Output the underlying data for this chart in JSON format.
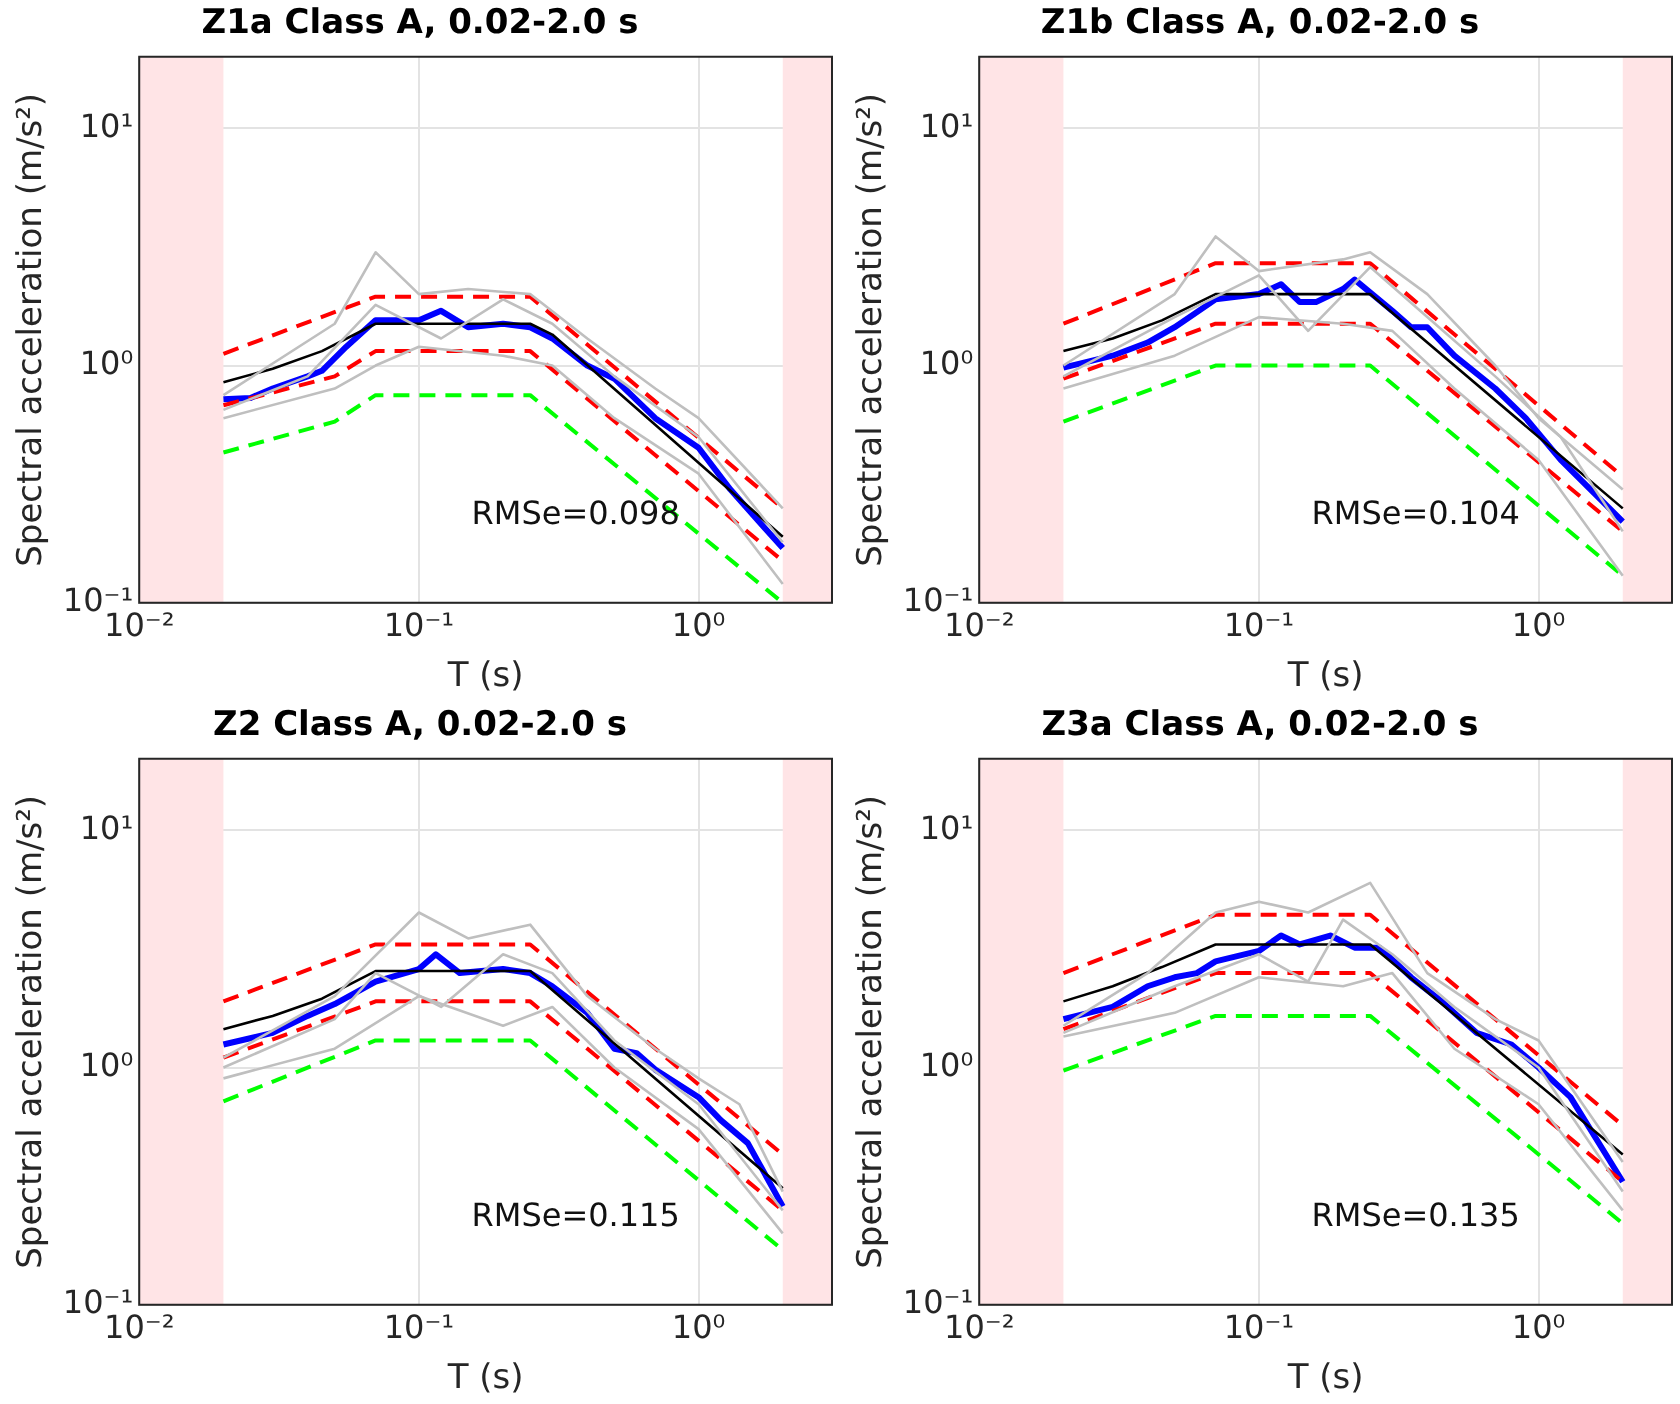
{
  "chart_data": [
    {
      "type": "line",
      "title": "Z1a Class A, 0.02-2.0 s",
      "xlabel": "T (s)",
      "ylabel": "Spectral acceleration (m/s²)",
      "log": "xy",
      "grid": true,
      "marker": "none",
      "xlim": [
        0.01,
        3
      ],
      "ylim": [
        0.1,
        20
      ],
      "xticks": [
        {
          "value": 0.01,
          "label": "10⁻²"
        },
        {
          "value": 0.1,
          "label": "10⁻¹"
        },
        {
          "value": 1,
          "label": "10⁰"
        }
      ],
      "yticks": [
        {
          "value": 0.1,
          "label": "10⁻¹"
        },
        {
          "value": 1,
          "label": "10⁰"
        },
        {
          "value": 10,
          "label": "10¹"
        }
      ],
      "bands": [
        {
          "axis": "x",
          "from": 0.01,
          "to": 0.02,
          "color": "#ffe4e6"
        },
        {
          "axis": "x",
          "from": 2.0,
          "to": 3,
          "color": "#ffe4e6"
        }
      ],
      "annotations": [
        "RMSe=0.098"
      ],
      "series": [
        {
          "color": "#bfbfbf",
          "x": [
            0.02,
            0.05,
            0.07,
            0.1,
            0.15,
            0.25,
            0.4,
            0.7,
            1.0,
            2.0
          ],
          "values": [
            0.75,
            1.5,
            3.0,
            2.0,
            2.1,
            2.0,
            1.3,
            0.8,
            0.6,
            0.25
          ]
        },
        {
          "color": "#bfbfbf",
          "x": [
            0.02,
            0.05,
            0.07,
            0.1,
            0.2,
            0.3,
            0.5,
            1.0,
            2.0
          ],
          "values": [
            0.6,
            0.8,
            1.0,
            1.2,
            1.1,
            1.0,
            0.6,
            0.35,
            0.12
          ]
        },
        {
          "color": "#bfbfbf",
          "x": [
            0.02,
            0.04,
            0.07,
            0.12,
            0.2,
            0.3,
            0.5,
            1.0,
            2.0
          ],
          "values": [
            0.65,
            0.9,
            1.8,
            1.3,
            1.9,
            1.5,
            0.9,
            0.5,
            0.18
          ]
        },
        {
          "color": "#00ff00",
          "line_style": "dashed",
          "x": [
            0.02,
            0.05,
            0.07,
            0.25,
            2.0
          ],
          "values": [
            0.43,
            0.58,
            0.75,
            0.75,
            0.1
          ]
        },
        {
          "color": "#ff0000",
          "line_style": "dashed",
          "x": [
            0.02,
            0.07,
            0.25,
            2.0
          ],
          "values": [
            1.12,
            1.95,
            1.95,
            0.25
          ]
        },
        {
          "color": "#ff0000",
          "line_style": "dashed",
          "x": [
            0.02,
            0.05,
            0.07,
            0.25,
            2.0
          ],
          "values": [
            0.68,
            0.9,
            1.15,
            1.15,
            0.15
          ]
        },
        {
          "color": "#000000",
          "x": [
            0.02,
            0.03,
            0.045,
            0.07,
            0.25,
            0.3,
            2.0
          ],
          "values": [
            0.85,
            0.97,
            1.15,
            1.5,
            1.5,
            1.35,
            0.19
          ]
        },
        {
          "color": "#0000ff",
          "x": [
            0.02,
            0.025,
            0.03,
            0.04,
            0.045,
            0.055,
            0.07,
            0.1,
            0.12,
            0.15,
            0.2,
            0.25,
            0.3,
            0.4,
            0.5,
            0.7,
            1.0,
            1.3,
            2.0
          ],
          "values": [
            0.72,
            0.73,
            0.8,
            0.9,
            0.95,
            1.2,
            1.55,
            1.55,
            1.7,
            1.45,
            1.5,
            1.45,
            1.3,
            1.0,
            0.88,
            0.6,
            0.45,
            0.3,
            0.17
          ]
        }
      ]
    },
    {
      "type": "line",
      "title": "Z1b Class A, 0.02-2.0 s",
      "xlabel": "T (s)",
      "ylabel": "Spectral acceleration (m/s²)",
      "log": "xy",
      "grid": true,
      "marker": "none",
      "xlim": [
        0.01,
        3
      ],
      "ylim": [
        0.1,
        20
      ],
      "xticks": [
        {
          "value": 0.01,
          "label": "10⁻²"
        },
        {
          "value": 0.1,
          "label": "10⁻¹"
        },
        {
          "value": 1,
          "label": "10⁰"
        }
      ],
      "yticks": [
        {
          "value": 0.1,
          "label": "10⁻¹"
        },
        {
          "value": 1,
          "label": "10⁰"
        },
        {
          "value": 10,
          "label": "10¹"
        }
      ],
      "bands": [
        {
          "axis": "x",
          "from": 0.01,
          "to": 0.02,
          "color": "#ffe4e6"
        },
        {
          "axis": "x",
          "from": 2.0,
          "to": 3,
          "color": "#ffe4e6"
        }
      ],
      "annotations": [
        "RMSe=0.104"
      ],
      "series": [
        {
          "color": "#bfbfbf",
          "x": [
            0.02,
            0.05,
            0.07,
            0.1,
            0.2,
            0.25,
            0.4,
            0.7,
            1.0,
            2.0
          ],
          "values": [
            1.0,
            2.0,
            3.5,
            2.5,
            2.8,
            3.0,
            2.0,
            1.0,
            0.6,
            0.3
          ]
        },
        {
          "color": "#bfbfbf",
          "x": [
            0.02,
            0.05,
            0.1,
            0.2,
            0.3,
            0.5,
            1.0,
            2.0
          ],
          "values": [
            0.8,
            1.1,
            1.6,
            1.5,
            1.4,
            0.8,
            0.4,
            0.13
          ]
        },
        {
          "color": "#bfbfbf",
          "x": [
            0.02,
            0.05,
            0.1,
            0.15,
            0.25,
            0.4,
            0.7,
            1.2,
            2.0
          ],
          "values": [
            0.9,
            1.6,
            2.4,
            1.4,
            2.6,
            1.6,
            0.9,
            0.5,
            0.2
          ]
        },
        {
          "color": "#00ff00",
          "line_style": "dashed",
          "x": [
            0.02,
            0.07,
            0.25,
            2.0
          ],
          "values": [
            0.58,
            1.0,
            1.0,
            0.13
          ]
        },
        {
          "color": "#ff0000",
          "line_style": "dashed",
          "x": [
            0.02,
            0.07,
            0.25,
            2.0
          ],
          "values": [
            1.5,
            2.7,
            2.7,
            0.34
          ]
        },
        {
          "color": "#ff0000",
          "line_style": "dashed",
          "x": [
            0.02,
            0.07,
            0.25,
            2.0
          ],
          "values": [
            0.88,
            1.5,
            1.5,
            0.2
          ]
        },
        {
          "color": "#000000",
          "x": [
            0.02,
            0.03,
            0.045,
            0.07,
            0.25,
            2.0
          ],
          "values": [
            1.15,
            1.3,
            1.55,
            2.0,
            2.0,
            0.25
          ]
        },
        {
          "color": "#0000ff",
          "x": [
            0.02,
            0.03,
            0.04,
            0.05,
            0.07,
            0.1,
            0.12,
            0.14,
            0.16,
            0.2,
            0.22,
            0.3,
            0.35,
            0.4,
            0.5,
            0.7,
            0.9,
            1.2,
            2.0
          ],
          "values": [
            0.98,
            1.1,
            1.25,
            1.45,
            1.9,
            2.0,
            2.2,
            1.85,
            1.85,
            2.1,
            2.3,
            1.7,
            1.45,
            1.45,
            1.1,
            0.8,
            0.6,
            0.4,
            0.22
          ]
        }
      ]
    },
    {
      "type": "line",
      "title": "Z2 Class A, 0.02-2.0 s",
      "xlabel": "T (s)",
      "ylabel": "Spectral acceleration (m/s²)",
      "log": "xy",
      "grid": true,
      "marker": "none",
      "xlim": [
        0.01,
        3
      ],
      "ylim": [
        0.1,
        20
      ],
      "xticks": [
        {
          "value": 0.01,
          "label": "10⁻²"
        },
        {
          "value": 0.1,
          "label": "10⁻¹"
        },
        {
          "value": 1,
          "label": "10⁰"
        }
      ],
      "yticks": [
        {
          "value": 0.1,
          "label": "10⁻¹"
        },
        {
          "value": 1,
          "label": "10⁰"
        },
        {
          "value": 10,
          "label": "10¹"
        }
      ],
      "bands": [
        {
          "axis": "x",
          "from": 0.01,
          "to": 0.02,
          "color": "#ffe4e6"
        },
        {
          "axis": "x",
          "from": 2.0,
          "to": 3,
          "color": "#ffe4e6"
        }
      ],
      "annotations": [
        "RMSe=0.115"
      ],
      "series": [
        {
          "color": "#bfbfbf",
          "x": [
            0.02,
            0.05,
            0.1,
            0.15,
            0.25,
            0.4,
            0.7,
            1.0,
            1.4,
            2.0
          ],
          "values": [
            1.1,
            2.0,
            4.5,
            3.5,
            4.0,
            2.0,
            1.2,
            0.9,
            0.7,
            0.3
          ]
        },
        {
          "color": "#bfbfbf",
          "x": [
            0.02,
            0.05,
            0.1,
            0.2,
            0.3,
            0.5,
            1.0,
            2.0
          ],
          "values": [
            0.9,
            1.2,
            2.0,
            1.5,
            1.8,
            1.0,
            0.55,
            0.2
          ]
        },
        {
          "color": "#bfbfbf",
          "x": [
            0.02,
            0.05,
            0.07,
            0.12,
            0.2,
            0.3,
            0.5,
            1.0,
            2.0
          ],
          "values": [
            1.0,
            1.6,
            2.5,
            1.8,
            3.0,
            2.5,
            1.3,
            0.7,
            0.25
          ]
        },
        {
          "color": "#00ff00",
          "line_style": "dashed",
          "x": [
            0.02,
            0.07,
            0.25,
            2.0
          ],
          "values": [
            0.72,
            1.3,
            1.3,
            0.17
          ]
        },
        {
          "color": "#ff0000",
          "line_style": "dashed",
          "x": [
            0.02,
            0.07,
            0.25,
            2.0
          ],
          "values": [
            1.9,
            3.3,
            3.3,
            0.43
          ]
        },
        {
          "color": "#ff0000",
          "line_style": "dashed",
          "x": [
            0.02,
            0.07,
            0.25,
            2.0
          ],
          "values": [
            1.1,
            1.9,
            1.9,
            0.25
          ]
        },
        {
          "color": "#000000",
          "x": [
            0.02,
            0.03,
            0.045,
            0.07,
            0.25,
            2.0
          ],
          "values": [
            1.45,
            1.65,
            1.95,
            2.55,
            2.55,
            0.31
          ]
        },
        {
          "color": "#0000ff",
          "x": [
            0.02,
            0.03,
            0.04,
            0.05,
            0.07,
            0.1,
            0.115,
            0.14,
            0.2,
            0.25,
            0.3,
            0.4,
            0.5,
            0.6,
            0.7,
            1.0,
            1.2,
            1.5,
            2.0
          ],
          "values": [
            1.25,
            1.4,
            1.65,
            1.85,
            2.3,
            2.6,
            3.0,
            2.5,
            2.6,
            2.5,
            2.2,
            1.7,
            1.2,
            1.15,
            0.98,
            0.75,
            0.6,
            0.48,
            0.26
          ]
        }
      ]
    },
    {
      "type": "line",
      "title": "Z3a Class A, 0.02-2.0 s",
      "xlabel": "T (s)",
      "ylabel": "Spectral acceleration (m/s²)",
      "log": "xy",
      "grid": true,
      "marker": "none",
      "xlim": [
        0.01,
        3
      ],
      "ylim": [
        0.1,
        20
      ],
      "xticks": [
        {
          "value": 0.01,
          "label": "10⁻²"
        },
        {
          "value": 0.1,
          "label": "10⁻¹"
        },
        {
          "value": 1,
          "label": "10⁰"
        }
      ],
      "yticks": [
        {
          "value": 0.1,
          "label": "10⁻¹"
        },
        {
          "value": 1,
          "label": "10⁰"
        },
        {
          "value": 10,
          "label": "10¹"
        }
      ],
      "bands": [
        {
          "axis": "x",
          "from": 0.01,
          "to": 0.02,
          "color": "#ffe4e6"
        },
        {
          "axis": "x",
          "from": 2.0,
          "to": 3,
          "color": "#ffe4e6"
        }
      ],
      "annotations": [
        "RMSe=0.135"
      ],
      "series": [
        {
          "color": "#bfbfbf",
          "x": [
            0.02,
            0.04,
            0.07,
            0.1,
            0.15,
            0.25,
            0.4,
            0.7,
            1.0,
            2.0
          ],
          "values": [
            1.5,
            2.5,
            4.5,
            5.0,
            4.5,
            6.0,
            2.5,
            1.6,
            1.3,
            0.4
          ]
        },
        {
          "color": "#bfbfbf",
          "x": [
            0.02,
            0.05,
            0.1,
            0.2,
            0.3,
            0.5,
            1.0,
            2.0
          ],
          "values": [
            1.35,
            1.7,
            2.4,
            2.2,
            2.5,
            1.2,
            0.7,
            0.25
          ]
        },
        {
          "color": "#bfbfbf",
          "x": [
            0.02,
            0.05,
            0.1,
            0.15,
            0.2,
            0.3,
            0.5,
            1.0,
            2.0
          ],
          "values": [
            1.4,
            2.2,
            3.0,
            2.3,
            4.2,
            3.0,
            1.8,
            1.0,
            0.3
          ]
        },
        {
          "color": "#00ff00",
          "line_style": "dashed",
          "x": [
            0.02,
            0.07,
            0.25,
            2.0
          ],
          "values": [
            0.97,
            1.65,
            1.65,
            0.22
          ]
        },
        {
          "color": "#ff0000",
          "line_style": "dashed",
          "x": [
            0.02,
            0.07,
            0.25,
            2.0
          ],
          "values": [
            2.5,
            4.4,
            4.4,
            0.57
          ]
        },
        {
          "color": "#ff0000",
          "line_style": "dashed",
          "x": [
            0.02,
            0.07,
            0.25,
            2.0
          ],
          "values": [
            1.45,
            2.5,
            2.5,
            0.33
          ]
        },
        {
          "color": "#000000",
          "x": [
            0.02,
            0.03,
            0.045,
            0.07,
            0.25,
            2.0
          ],
          "values": [
            1.9,
            2.2,
            2.65,
            3.3,
            3.3,
            0.43
          ]
        },
        {
          "color": "#0000ff",
          "x": [
            0.02,
            0.03,
            0.04,
            0.05,
            0.06,
            0.07,
            0.1,
            0.12,
            0.14,
            0.18,
            0.22,
            0.27,
            0.35,
            0.45,
            0.6,
            0.8,
            1.0,
            1.3,
            2.0
          ],
          "values": [
            1.6,
            1.8,
            2.2,
            2.4,
            2.5,
            2.8,
            3.1,
            3.6,
            3.3,
            3.6,
            3.2,
            3.2,
            2.4,
            1.9,
            1.4,
            1.25,
            1.0,
            0.75,
            0.33
          ]
        }
      ]
    }
  ]
}
